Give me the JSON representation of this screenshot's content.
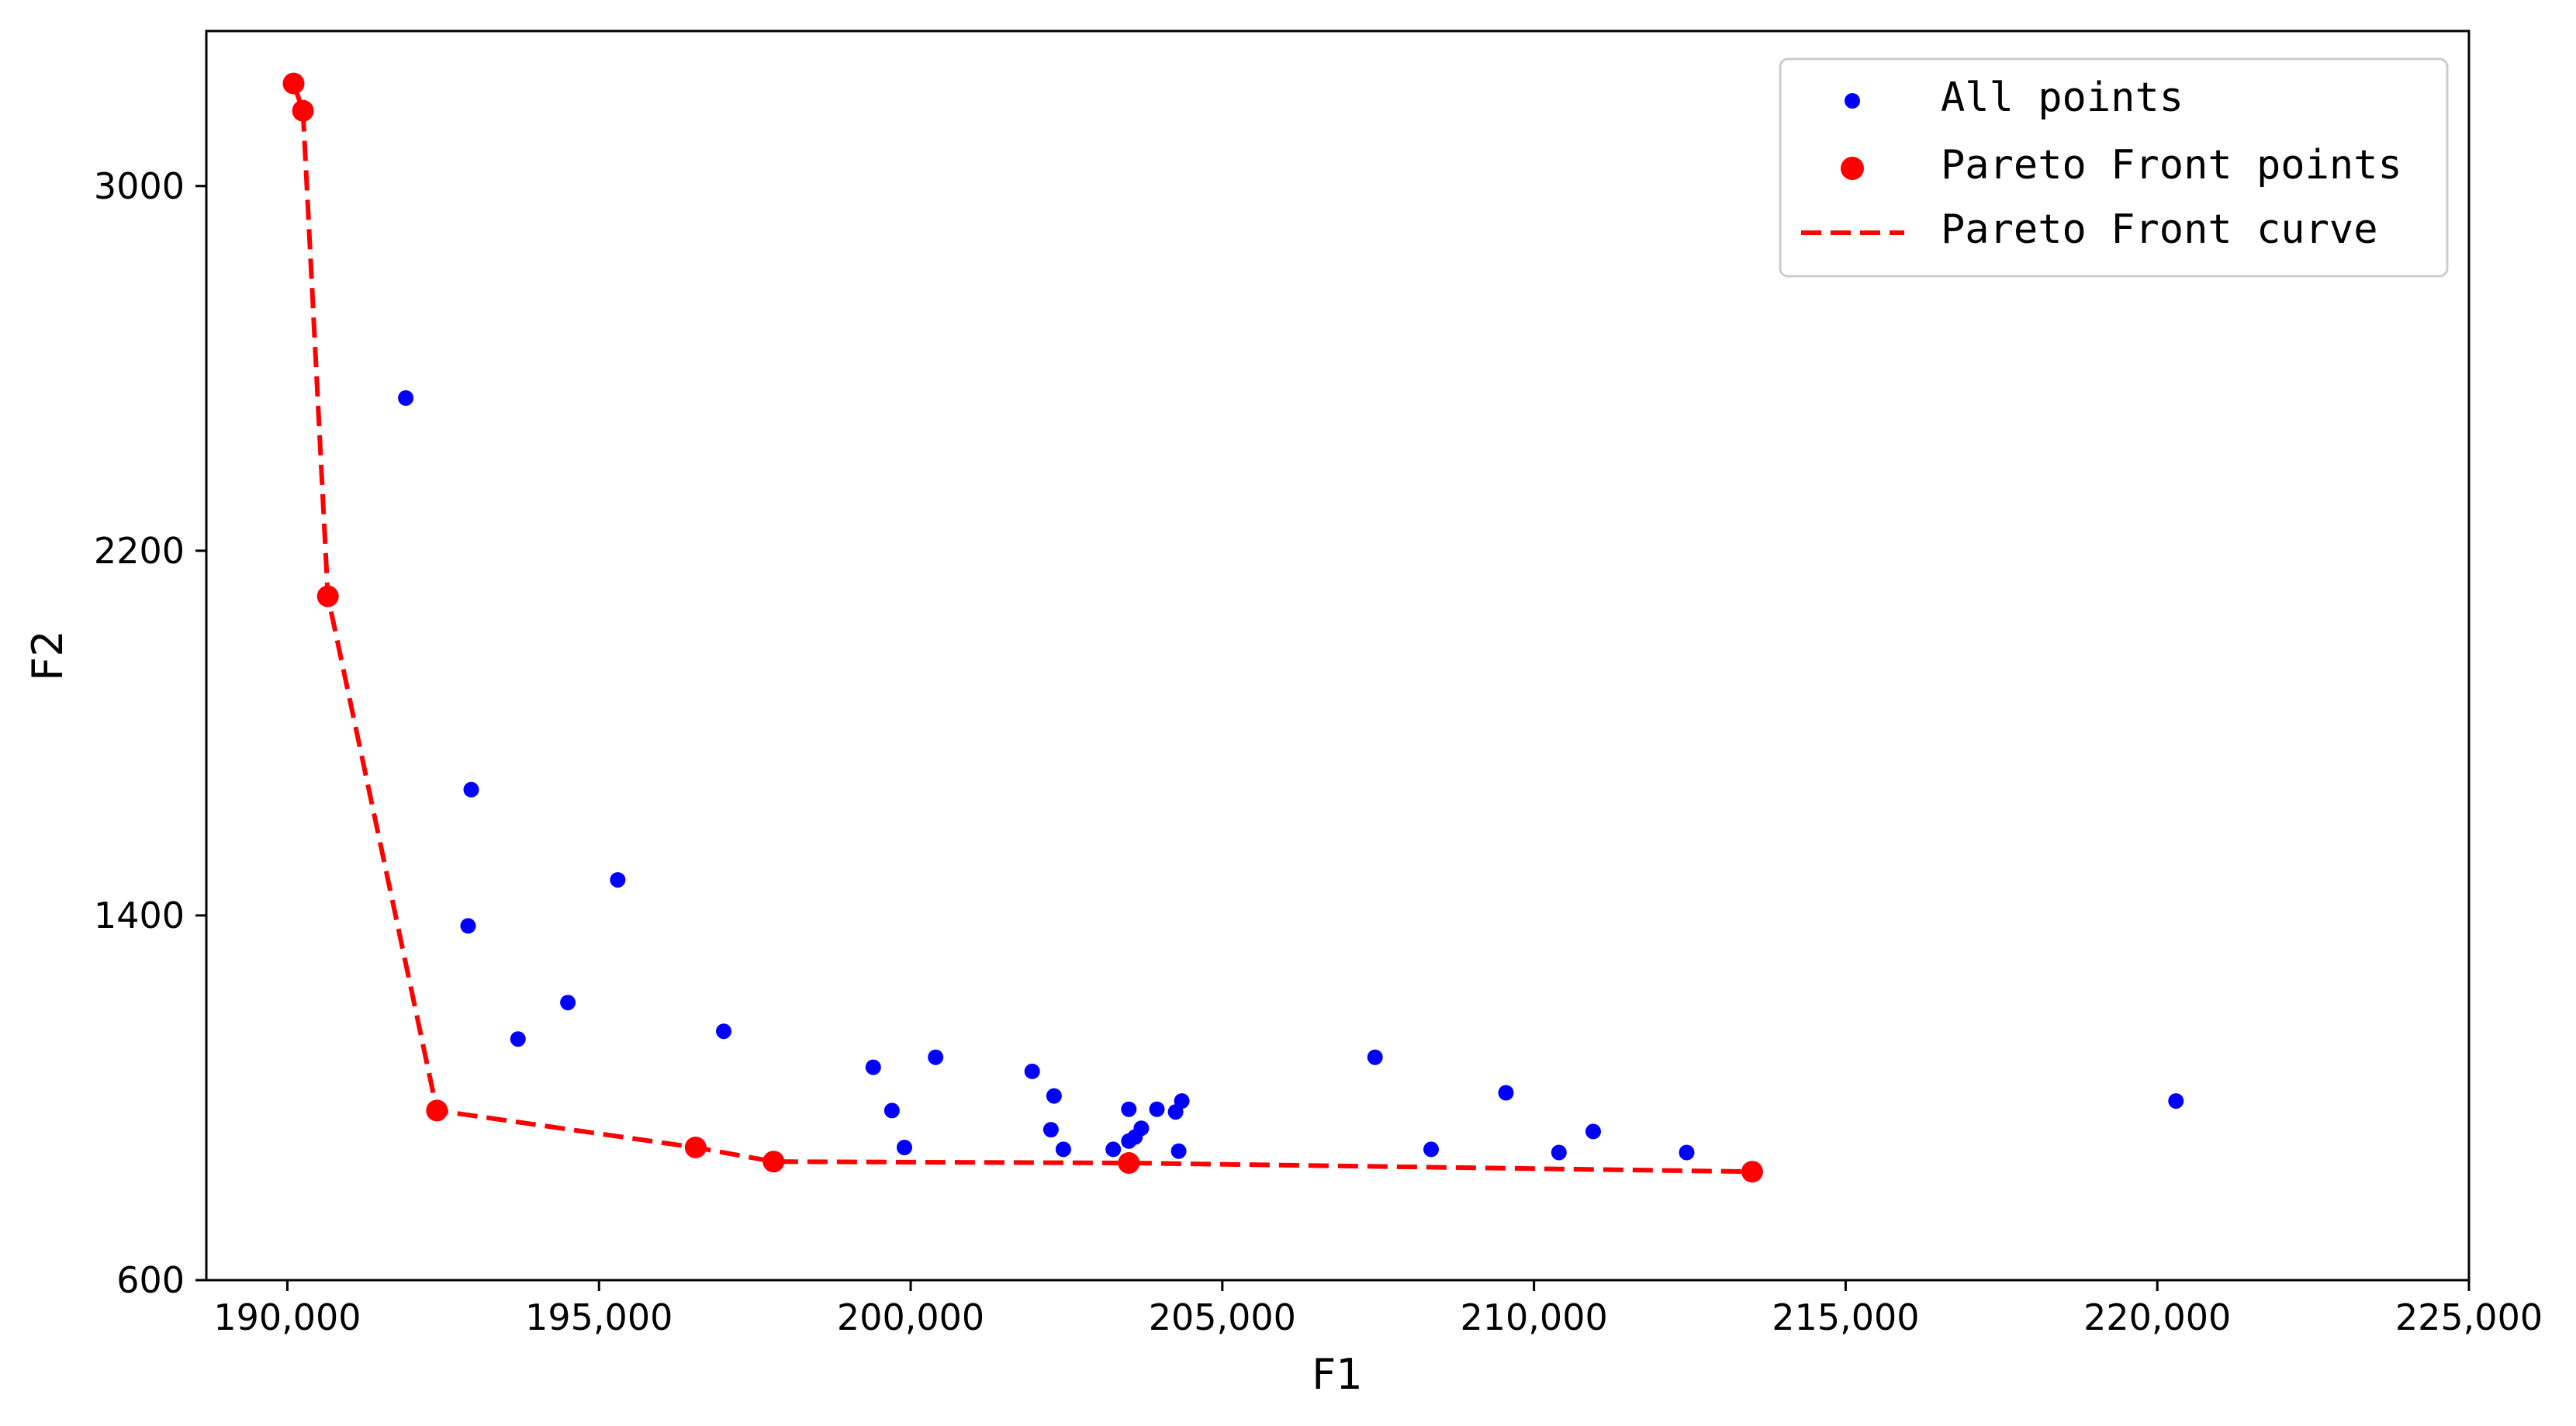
{
  "chart_data": {
    "type": "scatter",
    "title": "",
    "xlabel": "F1",
    "ylabel": "F2",
    "xlim": [
      188700,
      225000
    ],
    "ylim": [
      600,
      3340
    ],
    "xticks": [
      190000,
      195000,
      200000,
      205000,
      210000,
      215000,
      220000,
      225000
    ],
    "xtick_labels": [
      "190,000",
      "195,000",
      "200,000",
      "205,000",
      "210,000",
      "215,000",
      "220,000",
      "225,000"
    ],
    "yticks": [
      600,
      1400,
      2200,
      3000
    ],
    "ytick_labels": [
      "600",
      "1400",
      "2200",
      "3000"
    ],
    "grid": false,
    "legend_position": "top-right",
    "legend": [
      "All points",
      "Pareto Front points",
      "Pareto Front curve"
    ],
    "colors": {
      "all_points": "#0000ff",
      "pareto": "#ff0000"
    },
    "series": [
      {
        "name": "All points",
        "type": "scatter",
        "points": [
          [
            191900,
            2535
          ],
          [
            192950,
            1676
          ],
          [
            192900,
            1377
          ],
          [
            193700,
            1129
          ],
          [
            194500,
            1209
          ],
          [
            195300,
            1478
          ],
          [
            197000,
            1146
          ],
          [
            199400,
            1067
          ],
          [
            199700,
            972
          ],
          [
            199900,
            891
          ],
          [
            200400,
            1089
          ],
          [
            201950,
            1058
          ],
          [
            202250,
            930
          ],
          [
            202300,
            1004
          ],
          [
            202450,
            887
          ],
          [
            203250,
            887
          ],
          [
            203500,
            975
          ],
          [
            203500,
            905
          ],
          [
            203600,
            914
          ],
          [
            203700,
            933
          ],
          [
            203950,
            975
          ],
          [
            204250,
            969
          ],
          [
            204300,
            883
          ],
          [
            204350,
            993
          ],
          [
            207450,
            1089
          ],
          [
            208350,
            887
          ],
          [
            209550,
            1011
          ],
          [
            210400,
            880
          ],
          [
            210950,
            926
          ],
          [
            212450,
            880
          ],
          [
            220300,
            993
          ]
        ]
      },
      {
        "name": "Pareto Front points",
        "type": "scatter",
        "points": [
          [
            190100,
            3225
          ],
          [
            190250,
            3165
          ],
          [
            190650,
            2100
          ],
          [
            192400,
            972
          ],
          [
            196550,
            891
          ],
          [
            197800,
            860
          ],
          [
            203500,
            857
          ],
          [
            213500,
            838
          ]
        ]
      },
      {
        "name": "Pareto Front curve",
        "type": "line",
        "style": "dashed",
        "points": [
          [
            190100,
            3225
          ],
          [
            190250,
            3165
          ],
          [
            190650,
            2100
          ],
          [
            192400,
            972
          ],
          [
            196550,
            891
          ],
          [
            197800,
            860
          ],
          [
            203500,
            857
          ],
          [
            213500,
            838
          ]
        ]
      }
    ]
  }
}
